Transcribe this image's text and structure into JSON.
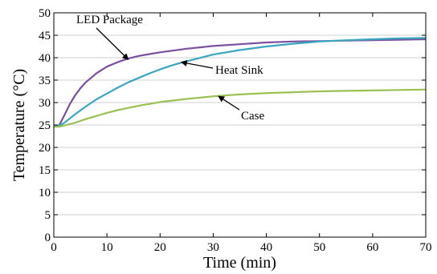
{
  "chart_data": {
    "type": "line",
    "xlabel": "Time (min)",
    "ylabel": "Temperature (°C)",
    "xlim": [
      0,
      70
    ],
    "ylim": [
      0,
      50
    ],
    "xticks": [
      0,
      10,
      20,
      30,
      40,
      50,
      60,
      70
    ],
    "yticks": [
      0,
      5,
      10,
      15,
      20,
      25,
      30,
      35,
      40,
      45,
      50
    ],
    "grid": "horizontal",
    "series": [
      {
        "name": "LED Package",
        "color": "#7b4fa0",
        "x": [
          0,
          1,
          2,
          3,
          4,
          5,
          6,
          8,
          10,
          12,
          14,
          16,
          18,
          20,
          25,
          30,
          35,
          40,
          45,
          50,
          55,
          60,
          65,
          70
        ],
        "y": [
          24.6,
          24.9,
          27.2,
          29.6,
          31.6,
          33.2,
          34.5,
          36.5,
          38.0,
          39.0,
          39.8,
          40.4,
          40.8,
          41.2,
          42.0,
          42.6,
          43.0,
          43.4,
          43.6,
          43.7,
          43.8,
          43.9,
          44.0,
          44.1
        ]
      },
      {
        "name": "Heat Sink",
        "color": "#3aa6bf",
        "x": [
          0,
          1,
          2,
          4,
          6,
          8,
          10,
          12,
          14,
          16,
          18,
          20,
          22,
          24,
          26,
          28,
          30,
          35,
          40,
          45,
          50,
          55,
          60,
          65,
          70
        ],
        "y": [
          24.6,
          24.8,
          25.5,
          27.4,
          29.1,
          30.7,
          32.0,
          33.3,
          34.5,
          35.5,
          36.5,
          37.4,
          38.2,
          38.9,
          39.5,
          40.1,
          40.7,
          41.7,
          42.5,
          43.1,
          43.6,
          43.9,
          44.1,
          44.3,
          44.4
        ]
      },
      {
        "name": "Case",
        "color": "#9bc053",
        "x": [
          0,
          1,
          2,
          4,
          6,
          8,
          10,
          12,
          14,
          16,
          18,
          20,
          25,
          30,
          35,
          40,
          45,
          50,
          55,
          60,
          65,
          70
        ],
        "y": [
          24.6,
          24.6,
          24.9,
          25.5,
          26.3,
          27.0,
          27.7,
          28.3,
          28.8,
          29.3,
          29.7,
          30.1,
          30.8,
          31.4,
          31.8,
          32.1,
          32.3,
          32.5,
          32.6,
          32.7,
          32.8,
          32.9
        ]
      }
    ],
    "annotations": [
      {
        "text": "LED Package",
        "arrow_to": [
          14,
          39.6
        ]
      },
      {
        "text": "Heat Sink",
        "arrow_to": [
          24,
          39.0
        ]
      },
      {
        "text": "Case",
        "arrow_to": [
          31,
          31.4
        ]
      }
    ]
  }
}
